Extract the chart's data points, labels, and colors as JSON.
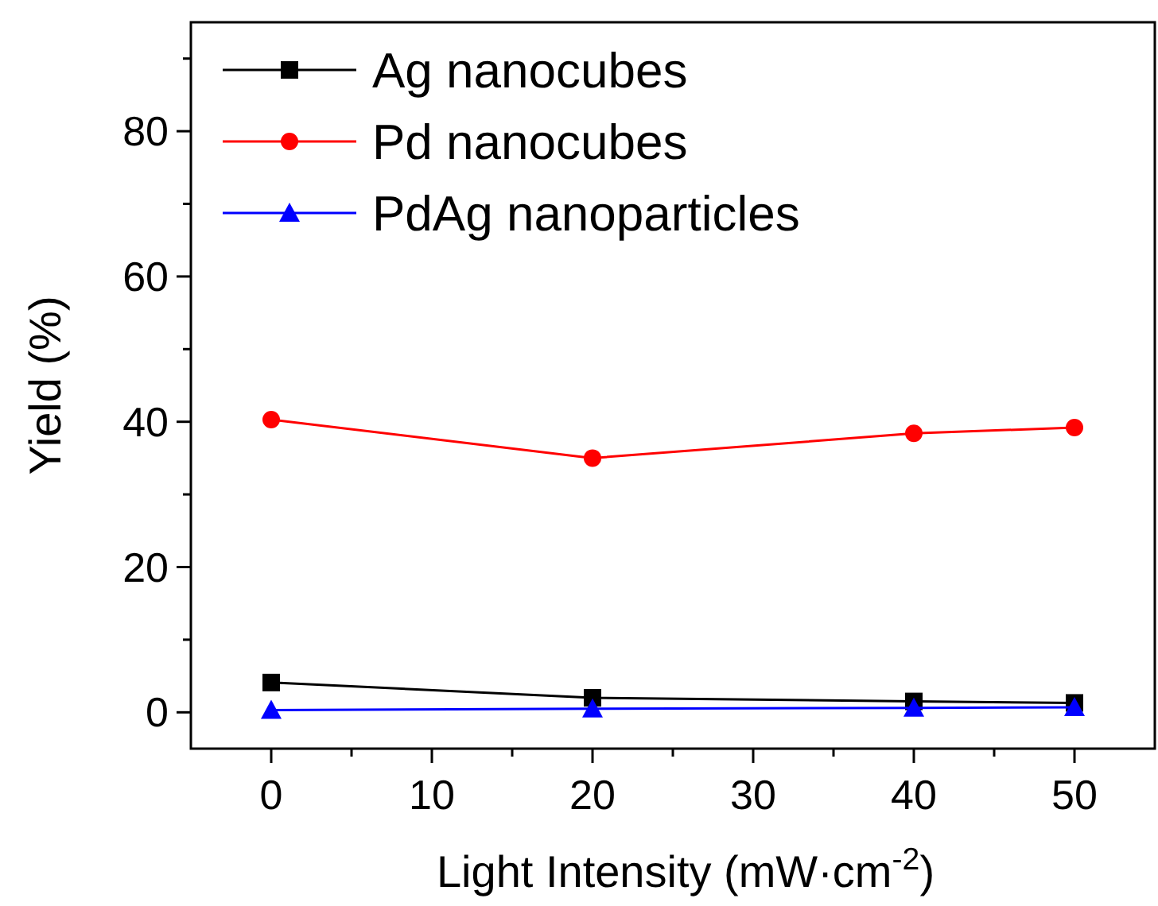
{
  "chart_data": {
    "type": "line",
    "xlabel": "Light Intensity (mW·cm$^{-2}$)",
    "ylabel": "Yield (%)",
    "x": [
      0,
      20,
      40,
      50
    ],
    "series": [
      {
        "name": "Ag nanocubes",
        "color": "#000000",
        "marker": "square",
        "values": [
          4.1,
          2.0,
          1.5,
          1.3
        ]
      },
      {
        "name": "Pd nanocubes",
        "color": "#ff0000",
        "marker": "circle",
        "values": [
          40.3,
          35.0,
          38.4,
          39.2
        ]
      },
      {
        "name": "PdAg nanoparticles",
        "color": "#0000ff",
        "marker": "triangle",
        "values": [
          0.3,
          0.5,
          0.6,
          0.7
        ]
      }
    ],
    "xlim": [
      -5,
      55
    ],
    "xticks": [
      0,
      {
        "value": 5,
        "label": null
      },
      10,
      {
        "value": 15,
        "label": null
      },
      20,
      {
        "value": 25,
        "label": null
      },
      30,
      {
        "value": 35,
        "label": null
      },
      40,
      {
        "value": 45,
        "label": null
      },
      50
    ],
    "ylim": [
      -5,
      95
    ],
    "yticks": [
      0,
      {
        "value": 10,
        "label": null
      },
      20,
      {
        "value": 30,
        "label": null
      },
      40,
      {
        "value": 50,
        "label": null
      },
      60,
      {
        "value": 70,
        "label": null
      },
      80,
      {
        "value": 90,
        "label": null
      }
    ],
    "legend": "top left",
    "grid": false,
    "line_style": "solid"
  }
}
